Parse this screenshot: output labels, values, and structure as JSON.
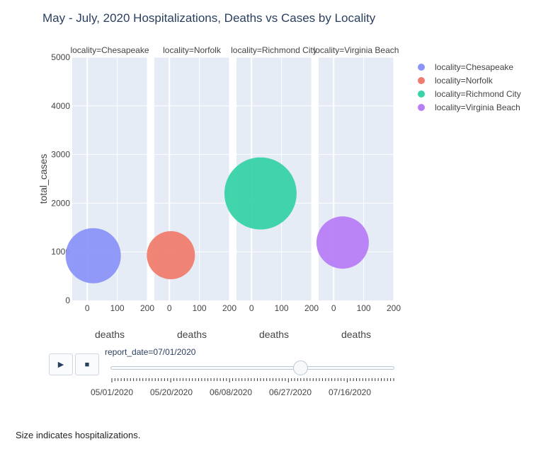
{
  "chart_data": {
    "type": "scatter",
    "title": "May - July, 2020 Hospitalizations, Deaths vs Cases by Locality",
    "ylabel": "total_cases",
    "xlabel": "deaths",
    "xlim": [
      -50,
      200
    ],
    "ylim": [
      0,
      5000
    ],
    "x_ticks": [
      "0",
      "100",
      "200"
    ],
    "y_ticks": [
      "0",
      "1000",
      "2000",
      "3000",
      "4000",
      "5000"
    ],
    "legend_position": "right",
    "size_note": "Size indicates hospitalizations.",
    "panels": [
      {
        "name": "locality=Chesapeake",
        "color": "#8b95f8",
        "points": [
          {
            "x": 20,
            "y": 920,
            "hospitalizations": 39
          }
        ]
      },
      {
        "name": "locality=Norfolk",
        "color": "#ef7d6e",
        "points": [
          {
            "x": 5,
            "y": 930,
            "hospitalizations": 34
          }
        ]
      },
      {
        "name": "locality=Richmond City",
        "color": "#38d3a8",
        "points": [
          {
            "x": 30,
            "y": 2200,
            "hospitalizations": 51
          }
        ]
      },
      {
        "name": "locality=Virginia Beach",
        "color": "#b77ef6",
        "points": [
          {
            "x": 30,
            "y": 1190,
            "hospitalizations": 37
          }
        ]
      }
    ]
  },
  "animation": {
    "play_icon": "play-icon",
    "stop_icon": "stop-icon",
    "slider_prefix": "report_date=",
    "current_date": "07/01/2020",
    "current_fraction": 0.67,
    "tick_labels": [
      "05/01/2020",
      "05/20/2020",
      "06/08/2020",
      "06/27/2020",
      "07/16/2020"
    ]
  },
  "footnote": "Size indicates hospitalizations."
}
